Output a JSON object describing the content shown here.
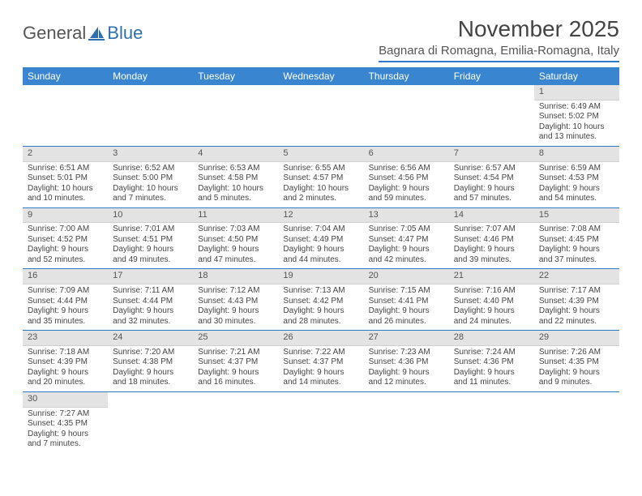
{
  "logo": {
    "part1": "General",
    "part2": "Blue"
  },
  "title": "November 2025",
  "subtitle": "Bagnara di Romagna, Emilia-Romagna, Italy",
  "colors": {
    "header_bg": "#3a85d0",
    "header_text": "#ffffff",
    "rule": "#2f78c4",
    "daynum_bg": "#e3e3e3",
    "text": "#444444",
    "logo_gray": "#555555",
    "logo_blue": "#2f6fb0"
  },
  "typography": {
    "title_size_pt": 21,
    "subtitle_size_pt": 11,
    "header_size_pt": 9,
    "cell_size_pt": 7.5
  },
  "weekdays": [
    "Sunday",
    "Monday",
    "Tuesday",
    "Wednesday",
    "Thursday",
    "Friday",
    "Saturday"
  ],
  "weeks": [
    [
      null,
      null,
      null,
      null,
      null,
      null,
      {
        "n": "1",
        "sr": "Sunrise: 6:49 AM",
        "ss": "Sunset: 5:02 PM",
        "dl": "Daylight: 10 hours and 13 minutes."
      }
    ],
    [
      {
        "n": "2",
        "sr": "Sunrise: 6:51 AM",
        "ss": "Sunset: 5:01 PM",
        "dl": "Daylight: 10 hours and 10 minutes."
      },
      {
        "n": "3",
        "sr": "Sunrise: 6:52 AM",
        "ss": "Sunset: 5:00 PM",
        "dl": "Daylight: 10 hours and 7 minutes."
      },
      {
        "n": "4",
        "sr": "Sunrise: 6:53 AM",
        "ss": "Sunset: 4:58 PM",
        "dl": "Daylight: 10 hours and 5 minutes."
      },
      {
        "n": "5",
        "sr": "Sunrise: 6:55 AM",
        "ss": "Sunset: 4:57 PM",
        "dl": "Daylight: 10 hours and 2 minutes."
      },
      {
        "n": "6",
        "sr": "Sunrise: 6:56 AM",
        "ss": "Sunset: 4:56 PM",
        "dl": "Daylight: 9 hours and 59 minutes."
      },
      {
        "n": "7",
        "sr": "Sunrise: 6:57 AM",
        "ss": "Sunset: 4:54 PM",
        "dl": "Daylight: 9 hours and 57 minutes."
      },
      {
        "n": "8",
        "sr": "Sunrise: 6:59 AM",
        "ss": "Sunset: 4:53 PM",
        "dl": "Daylight: 9 hours and 54 minutes."
      }
    ],
    [
      {
        "n": "9",
        "sr": "Sunrise: 7:00 AM",
        "ss": "Sunset: 4:52 PM",
        "dl": "Daylight: 9 hours and 52 minutes."
      },
      {
        "n": "10",
        "sr": "Sunrise: 7:01 AM",
        "ss": "Sunset: 4:51 PM",
        "dl": "Daylight: 9 hours and 49 minutes."
      },
      {
        "n": "11",
        "sr": "Sunrise: 7:03 AM",
        "ss": "Sunset: 4:50 PM",
        "dl": "Daylight: 9 hours and 47 minutes."
      },
      {
        "n": "12",
        "sr": "Sunrise: 7:04 AM",
        "ss": "Sunset: 4:49 PM",
        "dl": "Daylight: 9 hours and 44 minutes."
      },
      {
        "n": "13",
        "sr": "Sunrise: 7:05 AM",
        "ss": "Sunset: 4:47 PM",
        "dl": "Daylight: 9 hours and 42 minutes."
      },
      {
        "n": "14",
        "sr": "Sunrise: 7:07 AM",
        "ss": "Sunset: 4:46 PM",
        "dl": "Daylight: 9 hours and 39 minutes."
      },
      {
        "n": "15",
        "sr": "Sunrise: 7:08 AM",
        "ss": "Sunset: 4:45 PM",
        "dl": "Daylight: 9 hours and 37 minutes."
      }
    ],
    [
      {
        "n": "16",
        "sr": "Sunrise: 7:09 AM",
        "ss": "Sunset: 4:44 PM",
        "dl": "Daylight: 9 hours and 35 minutes."
      },
      {
        "n": "17",
        "sr": "Sunrise: 7:11 AM",
        "ss": "Sunset: 4:44 PM",
        "dl": "Daylight: 9 hours and 32 minutes."
      },
      {
        "n": "18",
        "sr": "Sunrise: 7:12 AM",
        "ss": "Sunset: 4:43 PM",
        "dl": "Daylight: 9 hours and 30 minutes."
      },
      {
        "n": "19",
        "sr": "Sunrise: 7:13 AM",
        "ss": "Sunset: 4:42 PM",
        "dl": "Daylight: 9 hours and 28 minutes."
      },
      {
        "n": "20",
        "sr": "Sunrise: 7:15 AM",
        "ss": "Sunset: 4:41 PM",
        "dl": "Daylight: 9 hours and 26 minutes."
      },
      {
        "n": "21",
        "sr": "Sunrise: 7:16 AM",
        "ss": "Sunset: 4:40 PM",
        "dl": "Daylight: 9 hours and 24 minutes."
      },
      {
        "n": "22",
        "sr": "Sunrise: 7:17 AM",
        "ss": "Sunset: 4:39 PM",
        "dl": "Daylight: 9 hours and 22 minutes."
      }
    ],
    [
      {
        "n": "23",
        "sr": "Sunrise: 7:18 AM",
        "ss": "Sunset: 4:39 PM",
        "dl": "Daylight: 9 hours and 20 minutes."
      },
      {
        "n": "24",
        "sr": "Sunrise: 7:20 AM",
        "ss": "Sunset: 4:38 PM",
        "dl": "Daylight: 9 hours and 18 minutes."
      },
      {
        "n": "25",
        "sr": "Sunrise: 7:21 AM",
        "ss": "Sunset: 4:37 PM",
        "dl": "Daylight: 9 hours and 16 minutes."
      },
      {
        "n": "26",
        "sr": "Sunrise: 7:22 AM",
        "ss": "Sunset: 4:37 PM",
        "dl": "Daylight: 9 hours and 14 minutes."
      },
      {
        "n": "27",
        "sr": "Sunrise: 7:23 AM",
        "ss": "Sunset: 4:36 PM",
        "dl": "Daylight: 9 hours and 12 minutes."
      },
      {
        "n": "28",
        "sr": "Sunrise: 7:24 AM",
        "ss": "Sunset: 4:36 PM",
        "dl": "Daylight: 9 hours and 11 minutes."
      },
      {
        "n": "29",
        "sr": "Sunrise: 7:26 AM",
        "ss": "Sunset: 4:35 PM",
        "dl": "Daylight: 9 hours and 9 minutes."
      }
    ],
    [
      {
        "n": "30",
        "sr": "Sunrise: 7:27 AM",
        "ss": "Sunset: 4:35 PM",
        "dl": "Daylight: 9 hours and 7 minutes."
      },
      null,
      null,
      null,
      null,
      null,
      null
    ]
  ]
}
